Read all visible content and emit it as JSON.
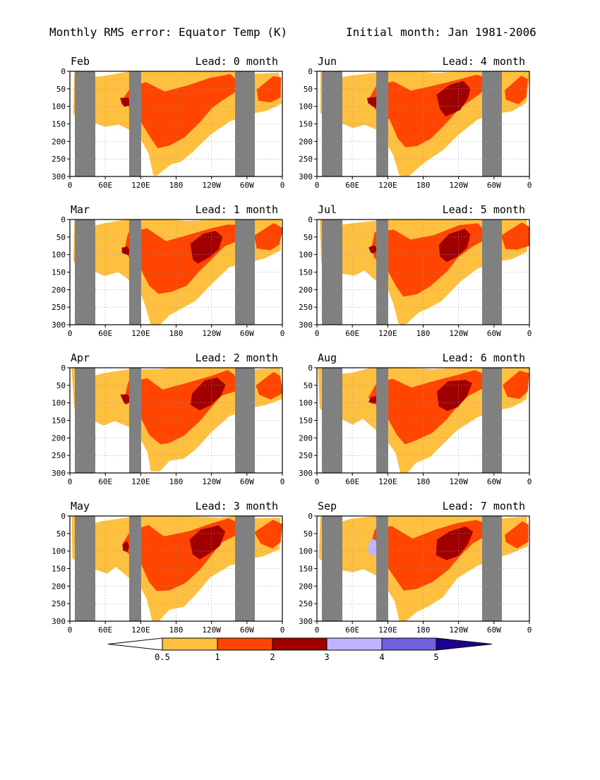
{
  "header": {
    "title": "Monthly RMS error: Equator Temp (K)",
    "subtitle": "Initial month: Jan 1981-2006"
  },
  "chart_data": [
    {
      "type": "heatmap",
      "month": "Feb",
      "lead": "Lead: 0 month"
    },
    {
      "type": "heatmap",
      "month": "Jun",
      "lead": "Lead: 4 month"
    },
    {
      "type": "heatmap",
      "month": "Mar",
      "lead": "Lead: 1 month"
    },
    {
      "type": "heatmap",
      "month": "Jul",
      "lead": "Lead: 5 month"
    },
    {
      "type": "heatmap",
      "month": "Apr",
      "lead": "Lead: 2 month"
    },
    {
      "type": "heatmap",
      "month": "Aug",
      "lead": "Lead: 6 month"
    },
    {
      "type": "heatmap",
      "month": "May",
      "lead": "Lead: 3 month"
    },
    {
      "type": "heatmap",
      "month": "Sep",
      "lead": "Lead: 7 month"
    }
  ],
  "axes": {
    "x_ticks": [
      "0",
      "60E",
      "120E",
      "180",
      "120W",
      "60W",
      "0"
    ],
    "y_ticks": [
      "0",
      "50",
      "100",
      "150",
      "200",
      "250",
      "300"
    ],
    "ylim": [
      0,
      300
    ],
    "grid": true,
    "land_mask_color": "#808080"
  },
  "colorbar": {
    "levels": [
      "0.5",
      "1",
      "2",
      "3",
      "4",
      "5"
    ],
    "colors": [
      "#ffffff",
      "#ffc040",
      "#ff4500",
      "#a00000",
      "#c0b4ff",
      "#7060e0",
      "#200090"
    ]
  }
}
